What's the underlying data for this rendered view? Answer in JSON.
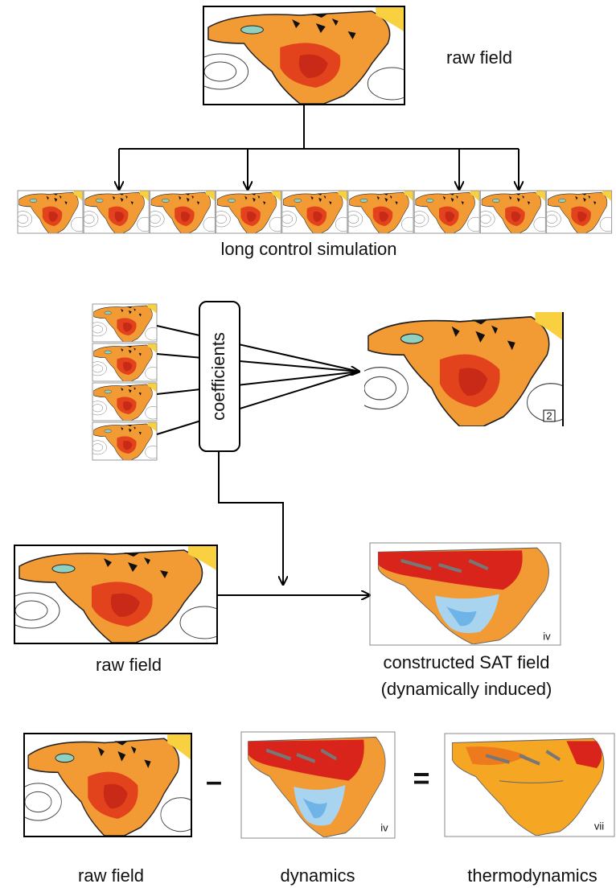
{
  "top": {
    "label": "raw field"
  },
  "strip": {
    "label": "long control simulation"
  },
  "regression": {
    "box": "coefficients",
    "panel_label": "2"
  },
  "construct": {
    "input_label": "raw field",
    "output_label": "constructed SAT field",
    "output_sublabel": "(dynamically induced)",
    "panel_label": "iv"
  },
  "equation": {
    "minus": "–",
    "equals": "=",
    "terms": [
      {
        "label": "raw field"
      },
      {
        "label": "dynamics",
        "panel_label": "iv"
      },
      {
        "label": "thermodynamics",
        "panel_label": "vii"
      }
    ]
  }
}
